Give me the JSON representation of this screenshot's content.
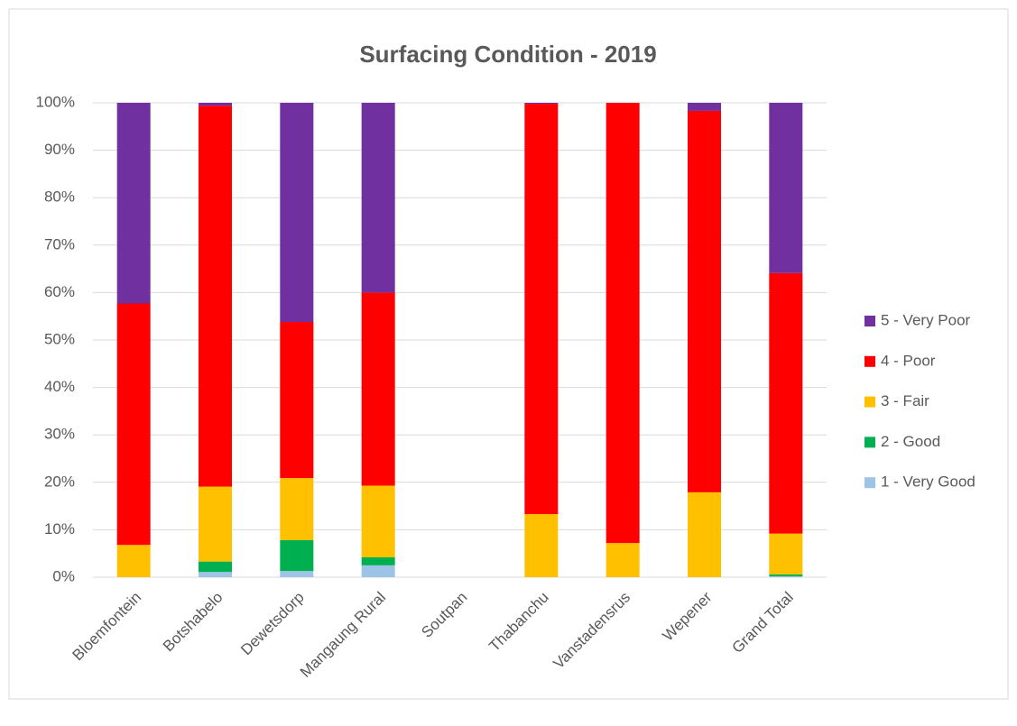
{
  "chart_data": {
    "type": "stacked_bar",
    "title": "Surfacing Condition - 2019",
    "categories": [
      "Bloemfontein",
      "Botshabelo",
      "Dewetsdorp",
      "Mangaung Rural",
      "Soutpan",
      "Thabanchu",
      "Vanstadensrus",
      "Wepener",
      "Grand Total"
    ],
    "series": [
      {
        "name": "1 - Very Good",
        "color": "#9dc3e6",
        "values": [
          0,
          1.1,
          1.3,
          2.5,
          0,
          0,
          0,
          0,
          0.2
        ]
      },
      {
        "name": "2 - Good",
        "color": "#00b050",
        "values": [
          0,
          2.2,
          6.5,
          1.7,
          0,
          0,
          0,
          0,
          0.4
        ]
      },
      {
        "name": "3 - Fair",
        "color": "#ffc000",
        "values": [
          6.8,
          15.8,
          13.1,
          15.1,
          0,
          13.3,
          7.2,
          17.9,
          8.6
        ]
      },
      {
        "name": "4 - Poor",
        "color": "#ff0000",
        "values": [
          50.9,
          80.3,
          32.9,
          40.7,
          0,
          86.5,
          92.8,
          80.4,
          54.9
        ]
      },
      {
        "name": "5 - Very Poor",
        "color": "#7030a0",
        "values": [
          42.3,
          0.6,
          46.2,
          40.0,
          0,
          0.2,
          0,
          1.7,
          35.9
        ]
      }
    ],
    "ylim": [
      0,
      100
    ],
    "yticks": [
      {
        "value": 0,
        "label": "0%"
      },
      {
        "value": 10,
        "label": "10%"
      },
      {
        "value": 20,
        "label": "20%"
      },
      {
        "value": 30,
        "label": "30%"
      },
      {
        "value": 40,
        "label": "40%"
      },
      {
        "value": 50,
        "label": "50%"
      },
      {
        "value": 60,
        "label": "60%"
      },
      {
        "value": 70,
        "label": "70%"
      },
      {
        "value": 80,
        "label": "80%"
      },
      {
        "value": 90,
        "label": "90%"
      },
      {
        "value": 100,
        "label": "100%"
      }
    ],
    "grid": true,
    "legend": "right"
  }
}
